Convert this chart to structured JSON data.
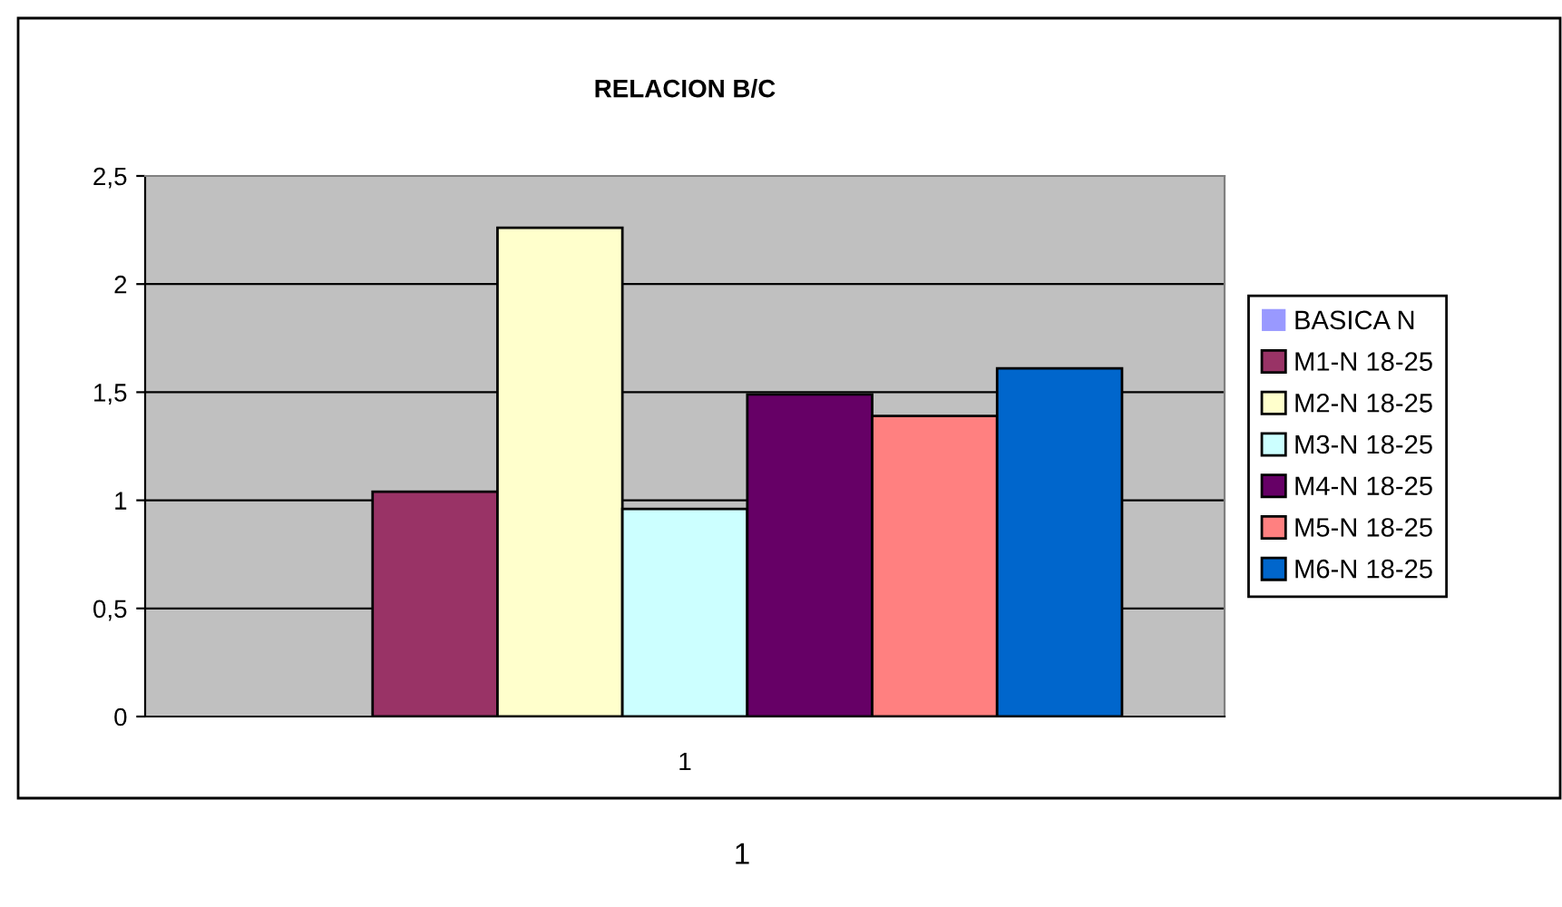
{
  "chart_data": {
    "type": "bar",
    "title": "RELACION B/C",
    "categories": [
      "1"
    ],
    "series": [
      {
        "name": "BASICA N",
        "color": "#9999ff",
        "values": [
          0
        ]
      },
      {
        "name": "M1-N 18-25",
        "color": "#993366",
        "values": [
          1.04
        ]
      },
      {
        "name": "M2-N 18-25",
        "color": "#ffffcc",
        "values": [
          2.26
        ]
      },
      {
        "name": "M3-N 18-25",
        "color": "#ccffff",
        "values": [
          0.96
        ]
      },
      {
        "name": "M4-N 18-25",
        "color": "#660066",
        "values": [
          1.49
        ]
      },
      {
        "name": "M5-N 18-25",
        "color": "#ff8080",
        "values": [
          1.39
        ]
      },
      {
        "name": "M6-N 18-25",
        "color": "#0066cc",
        "values": [
          1.61
        ]
      }
    ],
    "ylim": [
      0,
      2.5
    ],
    "yticks": [
      0,
      {
        "value": 0.5,
        "label": "0,5"
      },
      1,
      {
        "value": 1.5,
        "label": "1,5"
      },
      2,
      {
        "value": 2.5,
        "label": "2,5"
      }
    ],
    "grid": "y",
    "legend": "right",
    "annotations": [
      "1"
    ]
  }
}
